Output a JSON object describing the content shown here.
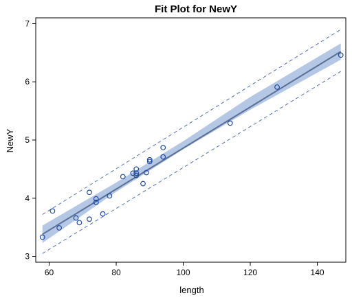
{
  "chart_data": {
    "type": "scatter",
    "title": "Fit Plot for NewY",
    "xlabel": "length",
    "ylabel": "NewY",
    "xlim": [
      56,
      148.5
    ],
    "ylim": [
      2.9,
      7.1
    ],
    "xticks": [
      60,
      80,
      100,
      120,
      140
    ],
    "yticks": [
      3,
      4,
      5,
      6,
      7
    ],
    "xtick_labels": [
      "60",
      "80",
      "100",
      "120",
      "140"
    ],
    "ytick_labels": [
      "3",
      "4",
      "5",
      "6",
      "7"
    ],
    "grid": false,
    "fit_line": {
      "x": [
        58,
        147
      ],
      "y": [
        3.38,
        6.52
      ],
      "color": "#5a6f96"
    },
    "confidence_band": {
      "x": [
        58,
        80,
        100,
        120,
        147
      ],
      "lower": [
        3.23,
        4.11,
        4.84,
        5.52,
        6.38
      ],
      "upper": [
        3.53,
        4.27,
        4.98,
        5.74,
        6.66
      ],
      "color": "#b4c8e6"
    },
    "prediction_band": {
      "x": [
        58,
        147
      ],
      "lower": [
        3.05,
        6.18
      ],
      "upper": [
        3.72,
        6.9
      ],
      "color": "#4f6fb0"
    },
    "points": {
      "color": "#1f4aa0",
      "x": [
        58,
        61,
        63,
        68,
        69,
        72,
        72,
        74,
        74,
        76,
        78,
        82,
        85,
        86,
        86,
        86,
        88,
        89,
        90,
        90,
        94,
        94,
        114,
        128,
        147
      ],
      "y": [
        3.33,
        3.78,
        3.49,
        3.66,
        3.58,
        3.64,
        4.1,
        3.99,
        3.93,
        3.73,
        4.04,
        4.37,
        4.43,
        4.5,
        4.43,
        4.39,
        4.25,
        4.44,
        4.66,
        4.63,
        4.87,
        4.71,
        5.29,
        5.91,
        6.46
      ]
    }
  }
}
